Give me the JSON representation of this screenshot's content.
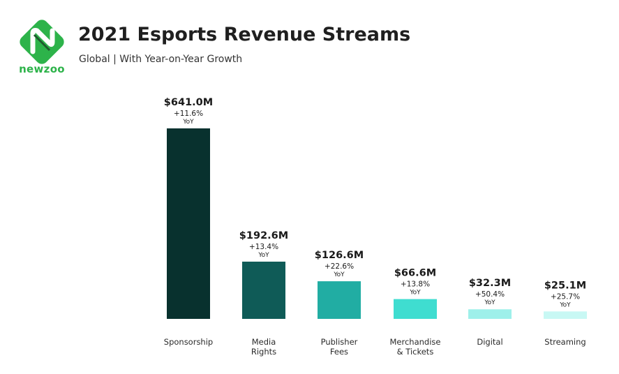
{
  "header": {
    "title": "2021 Esports Revenue Streams",
    "subtitle": "Global | With Year-on-Year Growth",
    "logo_text": "newzoo"
  },
  "colors": {
    "brand_green": "#2db34a",
    "brand_dark": "#1f5b2e"
  },
  "chart_data": {
    "type": "bar",
    "title": "2021 Esports Revenue Streams",
    "subtitle": "Global | With Year-on-Year Growth",
    "xlabel": "",
    "ylabel": "",
    "ylim": [
      0,
      641.0
    ],
    "grid": false,
    "categories": [
      [
        "Sponsorship"
      ],
      [
        "Media",
        "Rights"
      ],
      [
        "Publisher",
        "Fees"
      ],
      [
        "Merchandise",
        "& Tickets"
      ],
      [
        "Digital"
      ],
      [
        "Streaming"
      ]
    ],
    "values": [
      641.0,
      192.6,
      126.6,
      66.6,
      32.3,
      25.1
    ],
    "value_labels": [
      "$641.0M",
      "$192.6M",
      "$126.6M",
      "$66.6M",
      "$32.3M",
      "$25.1M"
    ],
    "yoy_growth": [
      "+11.6%",
      "+13.4%",
      "+22.6%",
      "+13.8%",
      "+50.4%",
      "+25.7%"
    ],
    "yoy_label": "YoY",
    "colors": [
      "#08312e",
      "#0f5b57",
      "#21ada3",
      "#3fddd0",
      "#9ef0ea",
      "#c8f8f4"
    ]
  }
}
